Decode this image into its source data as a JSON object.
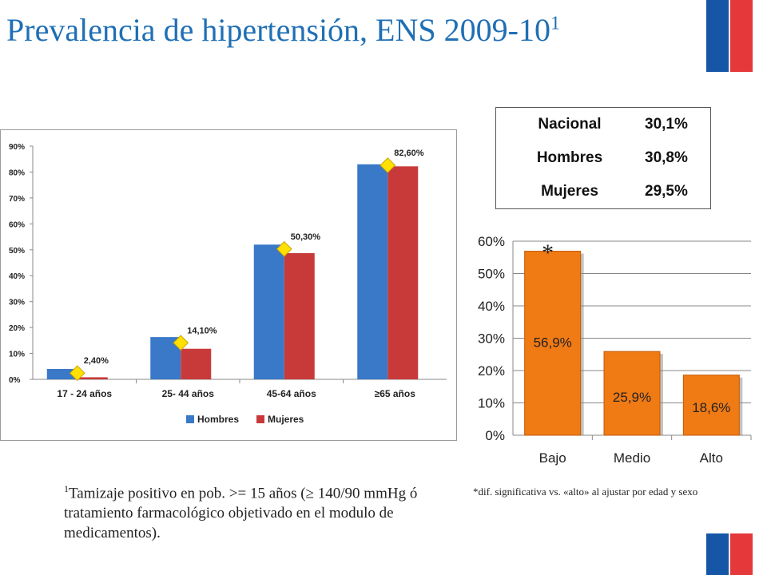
{
  "title": "Prevalencia de hipertensión, ENS 2009-10",
  "title_sup": "1",
  "summary_table": {
    "rows": [
      {
        "label": "Nacional",
        "value": "30,1%"
      },
      {
        "label": "Hombres",
        "value": "30,8%"
      },
      {
        "label": "Mujeres",
        "value": "29,5%"
      }
    ]
  },
  "footnote_sup": "1",
  "footnote": "Tamizaje positivo en pob. >= 15 años (≥ 140/90 mmHg ó tratamiento farmacológico objetivado en el modulo de medicamentos).",
  "significance_note": "*dif. significativa vs. «alto» al ajustar por edad y sexo",
  "colors": {
    "hombres": "#3a78c8",
    "mujeres": "#c83a3a",
    "marker": "#ffe000",
    "orange": "#f07a14",
    "title": "#1f6fb5"
  },
  "chart_data": [
    {
      "type": "bar",
      "categories": [
        "17 - 24 años",
        "25- 44 años",
        "45-64 años",
        "≥65 años"
      ],
      "series": [
        {
          "name": "Hombres",
          "values": [
            4.0,
            16.3,
            52.0,
            83.0
          ]
        },
        {
          "name": "Mujeres",
          "values": [
            0.8,
            11.8,
            48.7,
            82.2
          ]
        }
      ],
      "totals": [
        2.4,
        14.1,
        50.3,
        82.6
      ],
      "total_labels": [
        "2,40%",
        "14,10%",
        "50,30%",
        "82,60%"
      ],
      "yticks": [
        "0%",
        "10%",
        "20%",
        "30%",
        "40%",
        "50%",
        "60%",
        "70%",
        "80%",
        "90%"
      ],
      "ylim": [
        0,
        90
      ],
      "legend": "bottom",
      "grid": false
    },
    {
      "type": "bar",
      "categories": [
        "Bajo",
        "Medio",
        "Alto"
      ],
      "values": [
        56.9,
        25.9,
        18.6
      ],
      "value_labels": [
        "56,9%",
        "25,9%",
        "18,6%"
      ],
      "annotation": "*",
      "yticks": [
        "0%",
        "10%",
        "20%",
        "30%",
        "40%",
        "50%",
        "60%"
      ],
      "ylim": [
        0,
        60
      ],
      "grid": true
    }
  ]
}
